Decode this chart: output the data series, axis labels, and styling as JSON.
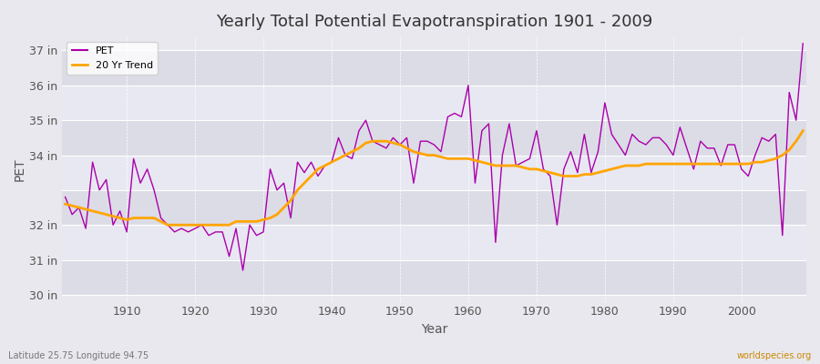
{
  "title": "Yearly Total Potential Evapotranspiration 1901 - 2009",
  "xlabel": "Year",
  "ylabel": "PET",
  "footnote_left": "Latitude 25.75 Longitude 94.75",
  "footnote_right": "worldspecies.org",
  "pet_color": "#aa00aa",
  "trend_color": "#FFA500",
  "bg_color": "#e8e8ee",
  "plot_bg_color": "#e0e0e8",
  "band_color_light": "#e8e8f0",
  "band_color_dark": "#d8d8e4",
  "grid_color": "#ffffff",
  "ylim": [
    29.8,
    37.4
  ],
  "xlim": [
    1900.5,
    2009.5
  ],
  "yticks": [
    30,
    31,
    32,
    34,
    35,
    36,
    37
  ],
  "ytick_labels": [
    "30 in",
    "31 in",
    "32 in",
    "34 in",
    "35 in",
    "36 in",
    "37 in"
  ],
  "xticks": [
    1910,
    1920,
    1930,
    1940,
    1950,
    1960,
    1970,
    1980,
    1990,
    2000
  ],
  "years": [
    1901,
    1902,
    1903,
    1904,
    1905,
    1906,
    1907,
    1908,
    1909,
    1910,
    1911,
    1912,
    1913,
    1914,
    1915,
    1916,
    1917,
    1918,
    1919,
    1920,
    1921,
    1922,
    1923,
    1924,
    1925,
    1926,
    1927,
    1928,
    1929,
    1930,
    1931,
    1932,
    1933,
    1934,
    1935,
    1936,
    1937,
    1938,
    1939,
    1940,
    1941,
    1942,
    1943,
    1944,
    1945,
    1946,
    1947,
    1948,
    1949,
    1950,
    1951,
    1952,
    1953,
    1954,
    1955,
    1956,
    1957,
    1958,
    1959,
    1960,
    1961,
    1962,
    1963,
    1964,
    1965,
    1966,
    1967,
    1968,
    1969,
    1970,
    1971,
    1972,
    1973,
    1974,
    1975,
    1976,
    1977,
    1978,
    1979,
    1980,
    1981,
    1982,
    1983,
    1984,
    1985,
    1986,
    1987,
    1988,
    1989,
    1990,
    1991,
    1992,
    1993,
    1994,
    1995,
    1996,
    1997,
    1998,
    1999,
    2000,
    2001,
    2002,
    2003,
    2004,
    2005,
    2006,
    2007,
    2008,
    2009
  ],
  "pet_values": [
    32.8,
    32.3,
    32.5,
    31.9,
    33.8,
    33.0,
    33.3,
    32.0,
    32.4,
    31.8,
    33.9,
    33.2,
    33.6,
    33.0,
    32.2,
    32.0,
    31.8,
    31.9,
    31.8,
    31.9,
    32.0,
    31.7,
    31.8,
    31.8,
    31.1,
    31.9,
    30.7,
    32.0,
    31.7,
    31.8,
    33.6,
    33.0,
    33.2,
    32.2,
    33.8,
    33.5,
    33.8,
    33.4,
    33.7,
    33.8,
    34.5,
    34.0,
    33.9,
    34.7,
    35.0,
    34.4,
    34.3,
    34.2,
    34.5,
    34.3,
    34.5,
    33.2,
    34.4,
    34.4,
    34.3,
    34.1,
    35.1,
    35.2,
    35.1,
    36.0,
    33.2,
    34.7,
    34.9,
    31.5,
    34.0,
    34.9,
    33.7,
    33.8,
    33.9,
    34.7,
    33.6,
    33.4,
    32.0,
    33.6,
    34.1,
    33.5,
    34.6,
    33.5,
    34.1,
    35.5,
    34.6,
    34.3,
    34.0,
    34.6,
    34.4,
    34.3,
    34.5,
    34.5,
    34.3,
    34.0,
    34.8,
    34.2,
    33.6,
    34.4,
    34.2,
    34.2,
    33.7,
    34.3,
    34.3,
    33.6,
    33.4,
    34.0,
    34.5,
    34.4,
    34.6,
    31.7,
    35.8,
    35.0,
    37.2
  ],
  "trend_values": [
    32.6,
    32.55,
    32.5,
    32.45,
    32.4,
    32.35,
    32.3,
    32.25,
    32.2,
    32.15,
    32.2,
    32.2,
    32.2,
    32.2,
    32.1,
    32.0,
    32.0,
    32.0,
    32.0,
    32.0,
    32.0,
    32.0,
    32.0,
    32.0,
    32.0,
    32.1,
    32.1,
    32.1,
    32.1,
    32.15,
    32.2,
    32.3,
    32.5,
    32.7,
    33.0,
    33.2,
    33.4,
    33.6,
    33.7,
    33.8,
    33.9,
    34.0,
    34.1,
    34.2,
    34.35,
    34.4,
    34.4,
    34.4,
    34.35,
    34.3,
    34.2,
    34.1,
    34.05,
    34.0,
    34.0,
    33.95,
    33.9,
    33.9,
    33.9,
    33.9,
    33.85,
    33.8,
    33.75,
    33.7,
    33.7,
    33.7,
    33.7,
    33.65,
    33.6,
    33.6,
    33.55,
    33.5,
    33.45,
    33.4,
    33.4,
    33.4,
    33.45,
    33.45,
    33.5,
    33.55,
    33.6,
    33.65,
    33.7,
    33.7,
    33.7,
    33.75,
    33.75,
    33.75,
    33.75,
    33.75,
    33.75,
    33.75,
    33.75,
    33.75,
    33.75,
    33.75,
    33.75,
    33.75,
    33.75,
    33.75,
    33.75,
    33.8,
    33.8,
    33.85,
    33.9,
    34.0,
    34.15,
    34.4,
    34.7
  ]
}
